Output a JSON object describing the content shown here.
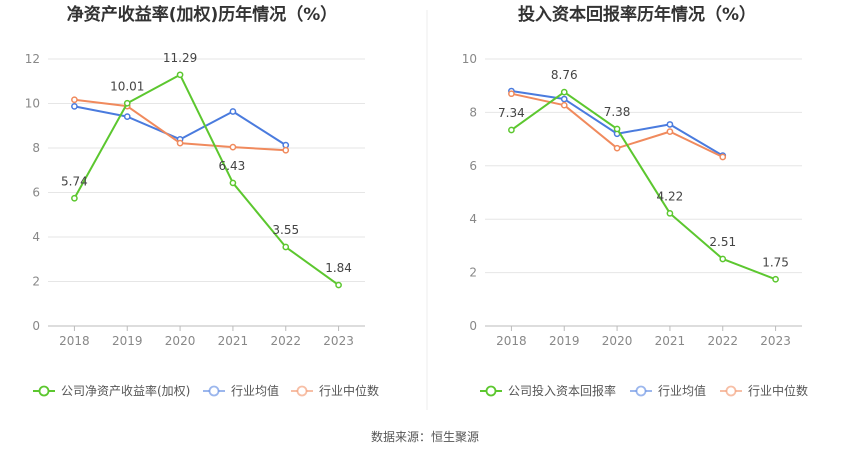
{
  "source_note": "数据来源：恒生聚源",
  "chart_data": [
    {
      "type": "line",
      "title": "净资产收益率(加权)历年情况（%）",
      "categories": [
        "2018",
        "2019",
        "2020",
        "2021",
        "2022",
        "2023"
      ],
      "ylim": [
        0,
        12
      ],
      "yticks": [
        0,
        2,
        4,
        6,
        8,
        10,
        12
      ],
      "grid": true,
      "legend_position": "bottom",
      "series": [
        {
          "name": "公司净资产收益率(加权)",
          "color": "#5CC72F",
          "values": [
            5.74,
            10.01,
            11.29,
            6.43,
            3.55,
            1.84
          ],
          "labels": [
            "5.74",
            "10.01",
            "11.29",
            "6.43",
            "3.55",
            "1.84"
          ]
        },
        {
          "name": "行业均值",
          "color": "#4A7BDE",
          "values": [
            9.87,
            9.41,
            8.39,
            9.64,
            8.13,
            null
          ]
        },
        {
          "name": "行业中位数",
          "color": "#F08A5D",
          "values": [
            10.17,
            9.88,
            8.22,
            8.04,
            7.9,
            null
          ]
        }
      ]
    },
    {
      "type": "line",
      "title": "投入资本回报率历年情况（%）",
      "categories": [
        "2018",
        "2019",
        "2020",
        "2021",
        "2022",
        "2023"
      ],
      "ylim": [
        0,
        10
      ],
      "yticks": [
        0,
        2,
        4,
        6,
        8,
        10
      ],
      "grid": true,
      "legend_position": "bottom",
      "series": [
        {
          "name": "公司投入资本回报率",
          "color": "#5CC72F",
          "values": [
            7.34,
            8.76,
            7.38,
            4.22,
            2.51,
            1.75
          ],
          "labels": [
            "7.34",
            "8.76",
            "7.38",
            "4.22",
            "2.51",
            "1.75"
          ]
        },
        {
          "name": "行业均值",
          "color": "#4A7BDE",
          "values": [
            8.8,
            8.5,
            7.2,
            7.55,
            6.38,
            null
          ]
        },
        {
          "name": "行业中位数",
          "color": "#F08A5D",
          "values": [
            8.7,
            8.27,
            6.66,
            7.28,
            6.33,
            null
          ]
        }
      ]
    }
  ]
}
